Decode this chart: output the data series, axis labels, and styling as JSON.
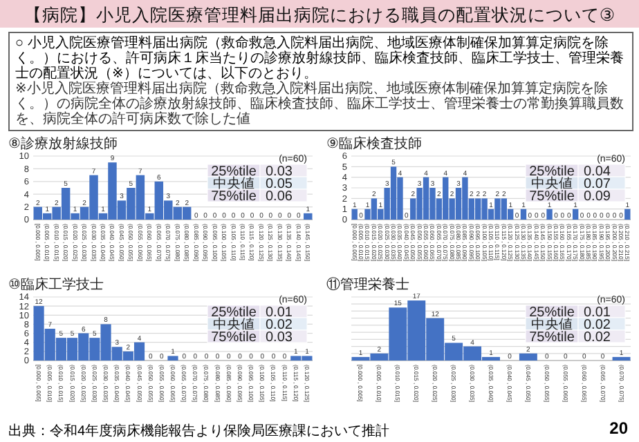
{
  "chart_data": [
    {
      "type": "other",
      "title": "【病院】小児入院医療管理料届出病院における職員の配置状況について③",
      "subtitle": "○ 小児入院医療管理料届出病院（救命救急入院料届出病院、地域医療体制確保加算算定病院を除く。）における、許可病床１床当たりの診療放射線技師、臨床検査技師、臨床工学技士、管理栄養士の配置状況（※）については、以下のとおり。",
      "annotations": [
        "※小児入院医療管理料届出病院（救命救急入院料届出病院、地域医療体制確保加算算定病院を除く。）の病院全体の診療放射線技師、臨床検査技師、臨床工学技士、管理栄養士の常勤換算職員数を、病院全体の許可病床数で除した値",
        "出典：令和4年度病床機能報告より保険局医療課において推計",
        "20"
      ]
    },
    {
      "type": "bar",
      "title": "⑧診療放射線技師",
      "color": "#4472c4",
      "ylim": [
        0,
        10
      ],
      "yticks": [
        0,
        2,
        4,
        6,
        8,
        10
      ],
      "grid": "y",
      "data_labels": true,
      "categories": [
        "[0.000 , 0.005]",
        "(0.005 , 0.010]",
        "(0.010 , 0.015]",
        "(0.015 , 0.020]",
        "(0.020 , 0.025]",
        "(0.025 , 0.030]",
        "(0.030 , 0.035]",
        "(0.035 , 0.040]",
        "(0.040 , 0.045]",
        "(0.045 , 0.050]",
        "(0.050 , 0.055]",
        "(0.055 , 0.060]",
        "(0.060 , 0.065]",
        "(0.065 , 0.070]",
        "(0.070 , 0.075]",
        "(0.075 , 0.080]",
        "(0.080 , 0.085]",
        "(0.085 , 0.090]",
        "(0.090 , 0.095]",
        "(0.095 , 0.100]",
        "(0.100 , 0.105]",
        "(0.105 , 0.110]",
        "(0.110 , 0.115]",
        "(0.115 , 0.120]",
        "(0.120 , 0.125]",
        "(0.125 , 0.130]",
        "(0.130 , 0.135]",
        "(0.135 , 0.140]",
        "(0.140 , 0.145]",
        "(0.145 , 0.150]"
      ],
      "values": [
        2,
        1,
        2,
        5,
        1,
        2,
        7,
        1,
        9,
        3,
        5,
        7,
        1,
        6,
        3,
        2,
        2,
        0,
        0,
        0,
        0,
        0,
        0,
        0,
        0,
        0,
        0,
        0,
        0,
        1
      ],
      "annotations": [
        "(n=60)",
        "25%tile",
        "0.03",
        "中央値",
        "0.05",
        "75%tile",
        "0.06"
      ]
    },
    {
      "type": "bar",
      "title": "⑨臨床検査技師",
      "color": "#4472c4",
      "ylim": [
        0,
        6
      ],
      "yticks": [
        0,
        1,
        2,
        3,
        4,
        5,
        6
      ],
      "grid": "y",
      "data_labels": true,
      "categories": [
        "[0.000 , 0.005]",
        "(0.005 , 0.010]",
        "(0.010 , 0.015]",
        "(0.015 , 0.020]",
        "(0.020 , 0.025]",
        "(0.025 , 0.030]",
        "(0.030 , 0.035]",
        "(0.035 , 0.040]",
        "(0.040 , 0.045]",
        "(0.045 , 0.050]",
        "(0.050 , 0.055]",
        "(0.055 , 0.060]",
        "(0.060 , 0.065]",
        "(0.065 , 0.070]",
        "(0.070 , 0.075]",
        "(0.075 , 0.080]",
        "(0.080 , 0.085]",
        "(0.085 , 0.090]",
        "(0.090 , 0.095]",
        "(0.095 , 0.100]",
        "(0.100 , 0.105]",
        "(0.105 , 0.110]",
        "(0.110 , 0.115]",
        "(0.115 , 0.120]",
        "(0.120 , 0.125]",
        "(0.125 , 0.130]",
        "(0.130 , 0.135]",
        "(0.135 , 0.140]",
        "(0.140 , 0.145]",
        "(0.145 , 0.150]",
        "(0.150 , 0.155]",
        "(0.155 , 0.160]",
        "(0.160 , 0.165]",
        "(0.165 , 0.170]",
        "(0.170 , 0.175]",
        "(0.175 , 0.180]",
        "(0.180 , 0.185]",
        "(0.185 , 0.190]",
        "(0.190 , 0.195]",
        "(0.195 , 0.200]",
        "(0.200 , 0.205]",
        "(0.205 , 0.210]",
        "(0.210 , 0.215]"
      ],
      "values": [
        1,
        0,
        1,
        2,
        1,
        3,
        5,
        4,
        0,
        2,
        3,
        4,
        3,
        2,
        4,
        2,
        3,
        4,
        2,
        2,
        2,
        1,
        2,
        2,
        1,
        0,
        1,
        0,
        0,
        0,
        1,
        0,
        0,
        0,
        1,
        0,
        0,
        0,
        0,
        0,
        0,
        0,
        1
      ],
      "annotations": [
        "(n=60)",
        "25%tile",
        "0.04",
        "中央値",
        "0.07",
        "75%tile",
        "0.09"
      ]
    },
    {
      "type": "bar",
      "title": "⑩臨床工学技士",
      "color": "#4472c4",
      "ylim": [
        0,
        14
      ],
      "yticks": [
        0,
        2,
        4,
        6,
        8,
        10,
        12,
        14
      ],
      "grid": "y",
      "data_labels": true,
      "categories": [
        "[0.000 , 0.005]",
        "(0.005 , 0.010]",
        "(0.010 , 0.015]",
        "(0.015 , 0.020]",
        "(0.020 , 0.025]",
        "(0.025 , 0.030]",
        "(0.030 , 0.035]",
        "(0.035 , 0.040]",
        "(0.040 , 0.045]",
        "(0.045 , 0.050]",
        "(0.050 , 0.055]",
        "(0.055 , 0.060]",
        "(0.060 , 0.065]",
        "(0.065 , 0.070]",
        "(0.070 , 0.075]",
        "(0.075 , 0.080]",
        "(0.080 , 0.085]",
        "(0.085 , 0.090]",
        "(0.090 , 0.095]",
        "(0.095 , 0.100]",
        "(0.100 , 0.105]",
        "(0.105 , 0.110]",
        "(0.110 , 0.115]",
        "(0.115 , 0.120]",
        "(0.120 , 0.125]"
      ],
      "values": [
        12,
        7,
        5,
        5,
        6,
        5,
        8,
        3,
        2,
        4,
        0,
        0,
        1,
        0,
        0,
        0,
        0,
        0,
        0,
        0,
        0,
        0,
        0,
        1,
        1
      ],
      "annotations": [
        "(n=60)",
        "25%tile",
        "0.01",
        "中央値",
        "0.02",
        "75%tile",
        "0.03"
      ]
    },
    {
      "type": "bar",
      "title": "⑪管理栄養士",
      "color": "#4472c4",
      "ylim": [
        0,
        18
      ],
      "yticks": [
        {
          "value": 0,
          "label": null
        },
        {
          "value": 2,
          "label": null
        },
        {
          "value": 4,
          "label": null
        },
        {
          "value": 6,
          "label": null
        },
        {
          "value": 8,
          "label": null
        },
        {
          "value": 10,
          "label": null
        },
        {
          "value": 12,
          "label": null
        },
        {
          "value": 14,
          "label": null
        },
        {
          "value": 16,
          "label": null
        },
        {
          "value": 18,
          "label": null
        }
      ],
      "grid": "y",
      "data_labels": true,
      "tick_labels": "x",
      "categories": [
        "[0.000 , 0.005]",
        "(0.005 , 0.010]",
        "(0.010 , 0.015]",
        "(0.015 , 0.020]",
        "(0.020 , 0.025]",
        "(0.025 , 0.030]",
        "(0.030 , 0.035]",
        "(0.035 , 0.040]",
        "(0.040 , 0.045]",
        "(0.045 , 0.050]",
        "(0.050 , 0.055]",
        "(0.055 , 0.060]",
        "(0.060 , 0.065]",
        "(0.065 , 0.070]",
        "(0.070 , 0.075]"
      ],
      "values": [
        1,
        2,
        15,
        17,
        12,
        5,
        4,
        1,
        0,
        2,
        0,
        0,
        0,
        0,
        1
      ],
      "annotations": [
        "(n=60)",
        "25%tile",
        "0.01",
        "中央値",
        "0.02",
        "75%tile",
        "0.02"
      ]
    }
  ]
}
